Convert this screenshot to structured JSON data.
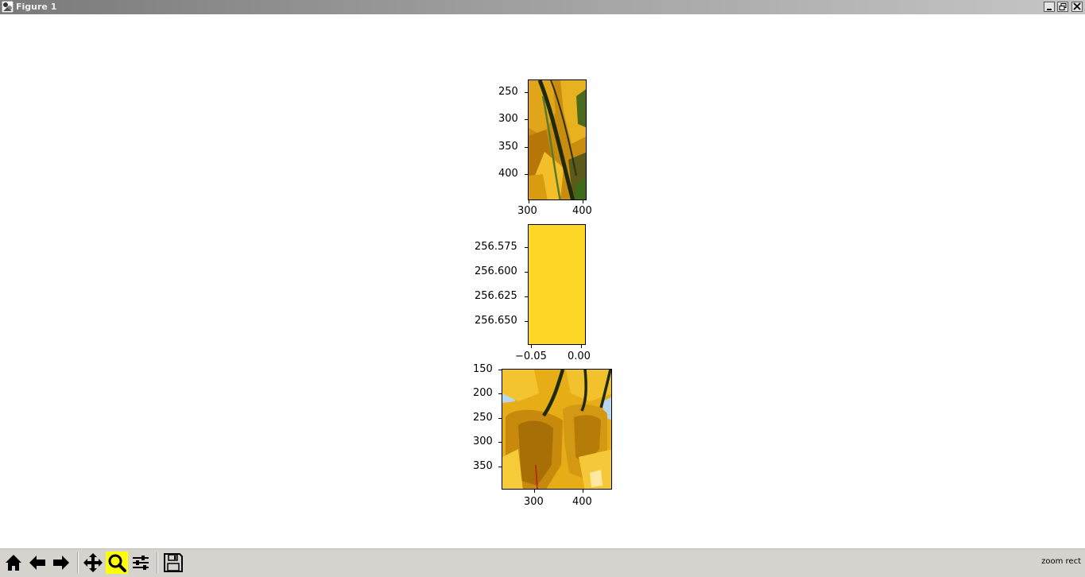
{
  "window": {
    "title": "Figure 1"
  },
  "toolbar": {
    "buttons": [
      {
        "icon": "home-icon",
        "name": "home-button"
      },
      {
        "icon": "back-arrow-icon",
        "name": "back-button"
      },
      {
        "icon": "forward-arrow-icon",
        "name": "forward-button"
      },
      {
        "icon": "pan-move-icon",
        "name": "pan-button"
      },
      {
        "icon": "zoom-magnifier-icon",
        "name": "zoom-button",
        "active": true
      },
      {
        "icon": "sliders-icon",
        "name": "configure-subplots-button"
      },
      {
        "icon": "floppy-disk-save-icon",
        "name": "save-button"
      }
    ],
    "status": "zoom rect"
  },
  "colors": {
    "active_tool": "#ffff00",
    "solid_panel_fill": "#ffd726"
  },
  "chart_data": [
    {
      "type": "image",
      "xticks": [
        "300",
        "400"
      ],
      "yticks": [
        "250",
        "300",
        "350",
        "400"
      ],
      "image": "crop of yellow tulip petals with dark green stem"
    },
    {
      "type": "image",
      "xticks": [
        "−0.05",
        "0.00"
      ],
      "yticks": [
        "256.575",
        "256.600",
        "256.625",
        "256.650"
      ],
      "image": "single yellow pixel filling axes"
    },
    {
      "type": "image",
      "xticks": [
        "300",
        "400"
      ],
      "yticks": [
        "150",
        "200",
        "250",
        "300",
        "350"
      ],
      "image": "crop of yellow tulips hanging from dark stems"
    }
  ]
}
